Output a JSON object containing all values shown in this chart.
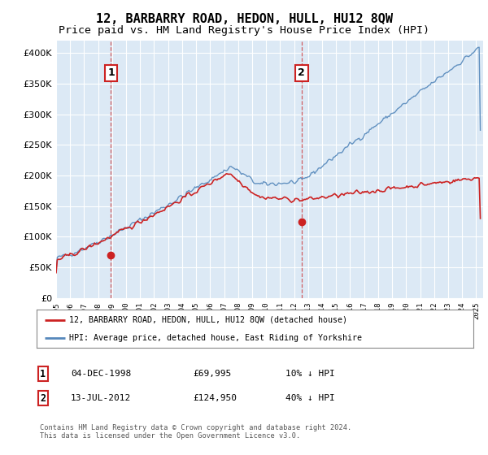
{
  "title": "12, BARBARRY ROAD, HEDON, HULL, HU12 8QW",
  "subtitle": "Price paid vs. HM Land Registry's House Price Index (HPI)",
  "ylim": [
    0,
    420000
  ],
  "yticks": [
    0,
    50000,
    100000,
    150000,
    200000,
    250000,
    300000,
    350000,
    400000
  ],
  "xlim_start": 1995.0,
  "xlim_end": 2025.5,
  "background_color": "#ffffff",
  "plot_bg_color": "#dce9f5",
  "grid_color": "#ffffff",
  "hpi_color": "#5588bb",
  "price_color": "#cc2222",
  "sale1_x": 1998.92,
  "sale1_y": 69995,
  "sale2_x": 2012.53,
  "sale2_y": 124950,
  "legend_line1": "12, BARBARRY ROAD, HEDON, HULL, HU12 8QW (detached house)",
  "legend_line2": "HPI: Average price, detached house, East Riding of Yorkshire",
  "sale1_date": "04-DEC-1998",
  "sale1_price": "£69,995",
  "sale1_note": "10% ↓ HPI",
  "sale2_date": "13-JUL-2012",
  "sale2_price": "£124,950",
  "sale2_note": "40% ↓ HPI",
  "footnote": "Contains HM Land Registry data © Crown copyright and database right 2024.\nThis data is licensed under the Open Government Licence v3.0.",
  "title_fontsize": 11,
  "subtitle_fontsize": 9.5
}
